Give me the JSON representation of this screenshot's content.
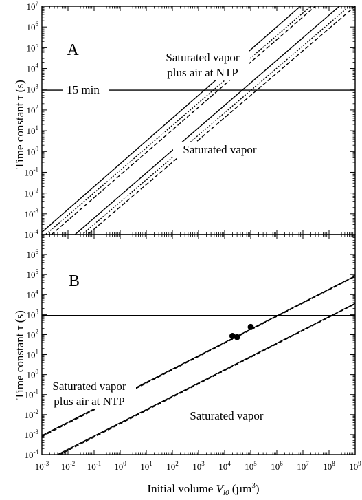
{
  "chart_data": [
    {
      "type": "line",
      "panel_label": "A",
      "xscale": "log",
      "yscale": "log",
      "xlim": [
        0.001,
        1000000000
      ],
      "ylim": [
        0.0001,
        10000000
      ],
      "ylabel": "Time constant τ (s)",
      "ytick_labels": [
        "10-4",
        "10-3",
        "10-2",
        "10-1",
        "100",
        "101",
        "102",
        "103",
        "104",
        "105",
        "106",
        "107"
      ],
      "reference_line": {
        "y": 900,
        "label": "15 min"
      },
      "annotations": [
        {
          "lines": [
            "Saturated vapor",
            "plus air at NTP"
          ]
        },
        {
          "lines": [
            "Saturated vapor"
          ]
        }
      ],
      "series": [
        {
          "style": "solid",
          "x": [
            0.001,
            8000000
          ],
          "y": [
            0.00013,
            10000000
          ]
        },
        {
          "style": "dashed",
          "x": [
            0.001,
            30000000
          ],
          "y": [
            4e-05,
            10000000
          ]
        },
        {
          "style": "dotted",
          "x": [
            0.001,
            20000000
          ],
          "y": [
            7e-05,
            10000000
          ]
        },
        {
          "style": "solid",
          "x": [
            0.001,
            250000000
          ],
          "y": [
            4.2e-06,
            10000000
          ]
        },
        {
          "style": "dashed",
          "x": [
            0.001,
            1000000000
          ],
          "y": [
            1.3e-06,
            10000000
          ]
        },
        {
          "style": "dotted",
          "x": [
            0.001,
            600000000
          ],
          "y": [
            2.2e-06,
            10000000
          ]
        }
      ]
    },
    {
      "type": "line",
      "panel_label": "B",
      "xscale": "log",
      "yscale": "log",
      "xlim": [
        0.001,
        1000000000
      ],
      "ylim": [
        0.0001,
        10000000
      ],
      "xlabel": "Initial volume V_l0 (µm³)",
      "ylabel": "Time constant τ (s)",
      "xtick_labels": [
        "10-3",
        "10-2",
        "10-1",
        "100",
        "101",
        "102",
        "103",
        "104",
        "105",
        "106",
        "107",
        "108",
        "109"
      ],
      "ytick_labels": [
        "10-4",
        "10-3",
        "10-2",
        "10-1",
        "100",
        "101",
        "102",
        "103",
        "104",
        "105",
        "106"
      ],
      "reference_line": {
        "y": 900
      },
      "annotations": [
        {
          "lines": [
            "Saturated vapor",
            "plus air at NTP"
          ]
        },
        {
          "lines": [
            "Saturated vapor"
          ]
        }
      ],
      "series": [
        {
          "style": "solid",
          "x": [
            0.001,
            1000000000
          ],
          "y": [
            0.0009,
            85000
          ]
        },
        {
          "style": "dashed",
          "x": [
            0.001,
            1000000000
          ],
          "y": [
            0.0008,
            80000
          ]
        },
        {
          "style": "solid",
          "x": [
            0.001,
            1000000000
          ],
          "y": [
            4e-05,
            3600
          ]
        },
        {
          "style": "dashed",
          "x": [
            0.001,
            1000000000
          ],
          "y": [
            3.5e-05,
            3400
          ]
        },
        {
          "style": "markers",
          "x": [
            20000,
            30000,
            100000
          ],
          "y": [
            85,
            75,
            240
          ]
        }
      ]
    }
  ]
}
